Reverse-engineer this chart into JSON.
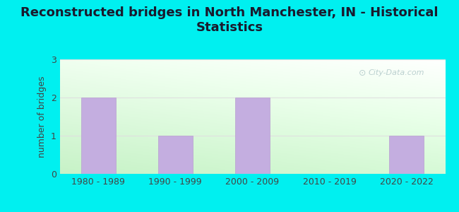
{
  "title": "Reconstructed bridges in North Manchester, IN - Historical\nStatistics",
  "categories": [
    "1980 - 1989",
    "1990 - 1999",
    "2000 - 2009",
    "2010 - 2019",
    "2020 - 2022"
  ],
  "values": [
    2,
    1,
    2,
    0,
    1
  ],
  "bar_color": "#c4aee0",
  "bar_edge_color": "#b89ed0",
  "background_outer": "#00f0f0",
  "plot_bg_topleft": "#d4edd4",
  "plot_bg_topright": "#f0f0f0",
  "plot_bg_bottomleft": "#c8e8c8",
  "plot_bg_bottomright": "#e8e8e8",
  "ylabel": "number of bridges",
  "ylim": [
    0,
    3
  ],
  "yticks": [
    0,
    1,
    2,
    3
  ],
  "title_fontsize": 13,
  "axis_fontsize": 9,
  "watermark_text": "City-Data.com",
  "watermark_color": "#b0c8c8",
  "grid_color": "#e0e0e0"
}
